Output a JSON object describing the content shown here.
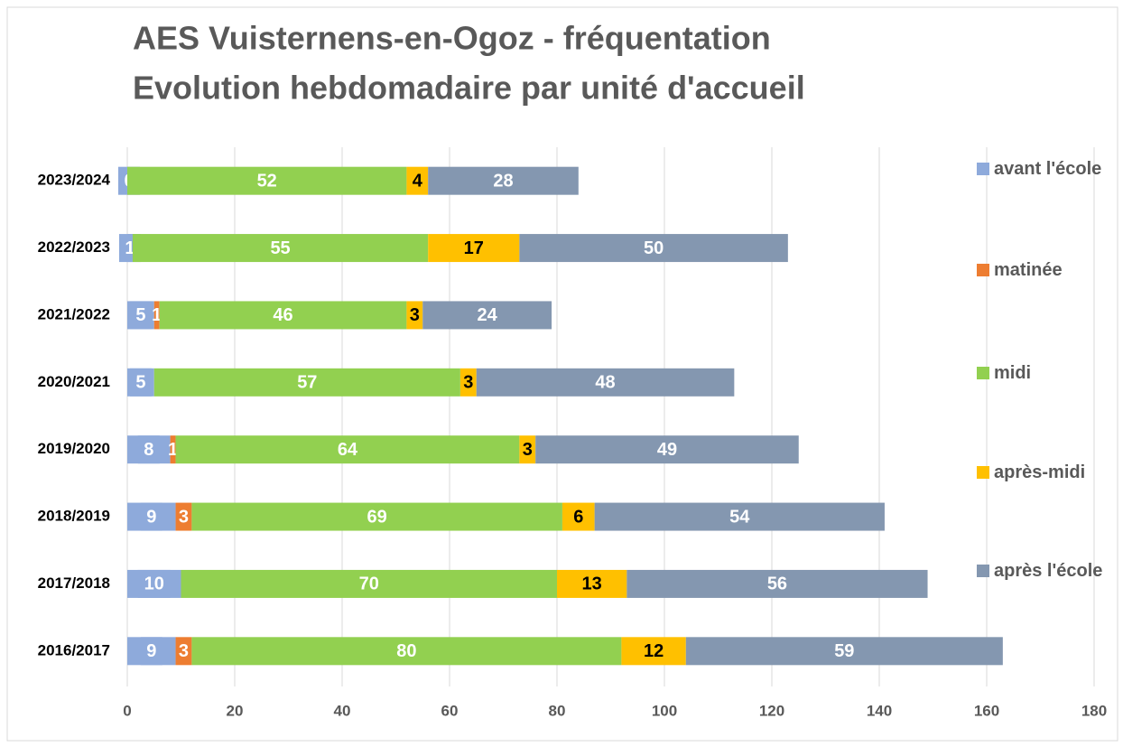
{
  "chart_data": {
    "type": "stacked-barh",
    "title": "AES Vuisternens-en-Ogoz - fréquentation",
    "subtitle": "Evolution hebdomadaire par unité d'accueil",
    "categories": [
      "2023/2024",
      "2022/2023",
      "2021/2022",
      "2020/2021",
      "2019/2020",
      "2018/2019",
      "2017/2018",
      "2016/2017"
    ],
    "series": [
      {
        "name": "avant l'école",
        "color": "#8eaadb",
        "values": [
          0,
          1,
          5,
          5,
          8,
          9,
          10,
          9
        ]
      },
      {
        "name": "matinée",
        "color": "#ed7d31",
        "values": [
          0,
          0,
          1,
          0,
          1,
          3,
          0,
          3
        ]
      },
      {
        "name": "midi",
        "color": "#92d050",
        "values": [
          52,
          55,
          46,
          57,
          64,
          69,
          70,
          80
        ]
      },
      {
        "name": "après-midi",
        "color": "#ffc000",
        "values": [
          4,
          17,
          3,
          3,
          3,
          6,
          13,
          12
        ]
      },
      {
        "name": "après l'école",
        "color": "#8497b0",
        "values": [
          28,
          50,
          24,
          48,
          49,
          54,
          56,
          59
        ]
      }
    ],
    "xlim": [
      0,
      180
    ],
    "xticks": [
      0,
      20,
      40,
      60,
      80,
      100,
      120,
      140,
      160,
      180
    ],
    "grid": true,
    "legend": "right"
  }
}
